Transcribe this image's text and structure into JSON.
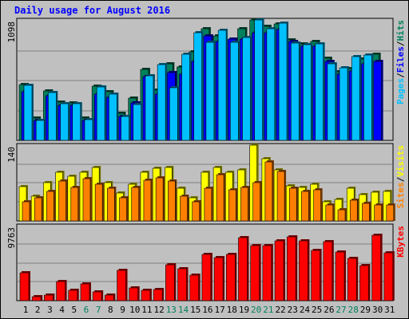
{
  "colors": {
    "background": "#c0c0c0",
    "hits": "#00805c",
    "files": "#0000ff",
    "pages": "#00c0ff",
    "visits": "#ffff00",
    "sites": "#ff8000",
    "kbytes": "#ff0000",
    "title": "#0000ff",
    "weekend_label": "#00805c",
    "weekday_label": "#000000",
    "grid": "#808080"
  },
  "chart_data": {
    "type": "bar",
    "title": "Daily usage for August 2016",
    "categories": [
      "1",
      "2",
      "3",
      "4",
      "5",
      "6",
      "7",
      "8",
      "9",
      "10",
      "11",
      "12",
      "13",
      "14",
      "15",
      "16",
      "17",
      "18",
      "19",
      "20",
      "21",
      "22",
      "23",
      "24",
      "25",
      "26",
      "27",
      "28",
      "29",
      "30",
      "31"
    ],
    "weekend_days": [
      6,
      7,
      13,
      14,
      20,
      21,
      27,
      28
    ],
    "panels": [
      {
        "name": "hits-files-pages",
        "ymax_label": "1098",
        "ymax": 1098,
        "legend": [
          {
            "text": "Pages",
            "color_key": "pages"
          },
          {
            "text": "/",
            "color_key": "weekday_label"
          },
          {
            "text": "Files",
            "color_key": "files"
          },
          {
            "text": "/",
            "color_key": "weekday_label"
          },
          {
            "text": "Hits",
            "color_key": "hits"
          }
        ],
        "series": [
          {
            "name": "Hits",
            "color_key": "hits",
            "values": [
              510,
              205,
              450,
              350,
              345,
              205,
              495,
              440,
              245,
              385,
              650,
              460,
              700,
              670,
              810,
              1015,
              955,
              885,
              1015,
              1098,
              1040,
              1060,
              915,
              880,
              905,
              750,
              625,
              655,
              740,
              785,
              0
            ]
          },
          {
            "name": "Files",
            "color_key": "files",
            "values": [
              440,
              180,
              405,
              320,
              320,
              180,
              425,
              395,
              215,
              345,
              580,
              420,
              620,
              600,
              720,
              955,
              905,
              920,
              920,
              980,
              980,
              1010,
              900,
              860,
              860,
              720,
              600,
              630,
              700,
              720,
              0
            ]
          },
          {
            "name": "Pages",
            "color_key": "pages",
            "values": [
              500,
              185,
              435,
              335,
              335,
              190,
              485,
              420,
              220,
              330,
              590,
              690,
              480,
              785,
              985,
              895,
              1000,
              895,
              935,
              1098,
              1020,
              1070,
              885,
              870,
              880,
              695,
              665,
              765,
              775,
              0,
              0
            ]
          }
        ]
      },
      {
        "name": "visits-sites",
        "ymax_label": "140",
        "ymax": 140,
        "legend": [
          {
            "text": "Sites",
            "color_key": "sites"
          },
          {
            "text": "/",
            "color_key": "weekday_label"
          },
          {
            "text": "Visits",
            "color_key": "visits"
          }
        ],
        "series": [
          {
            "name": "Visits",
            "color_key": "visits",
            "values": [
              64,
              45,
              70,
              90,
              83,
              90,
              98,
              70,
              52,
              68,
              90,
              97,
              98,
              60,
              43,
              90,
              98,
              90,
              95,
              140,
              115,
              95,
              65,
              62,
              68,
              36,
              40,
              60,
              48,
              53,
              54
            ]
          },
          {
            "name": "Sites",
            "color_key": "sites",
            "values": [
              35,
              42,
              55,
              73,
              62,
              78,
              68,
              60,
              42,
              62,
              75,
              80,
              73,
              45,
              36,
              60,
              85,
              57,
              62,
              70,
              109,
              92,
              61,
              54,
              57,
              30,
              20,
              39,
              33,
              30,
              30
            ]
          }
        ]
      },
      {
        "name": "kbytes",
        "ymax_label": "9763",
        "ymax": 9763,
        "legend": [
          {
            "text": "KBytes",
            "color_key": "kbytes"
          }
        ],
        "series": [
          {
            "name": "KBytes",
            "color_key": "kbytes",
            "values": [
              3600,
              500,
              700,
              2500,
              1400,
              2200,
              1100,
              700,
              3900,
              1700,
              1400,
              1500,
              4700,
              4200,
              3300,
              6000,
              5600,
              6000,
              8200,
              7200,
              7200,
              7800,
              8300,
              7800,
              6500,
              7700,
              6300,
              5500,
              4600,
              8500,
              6200
            ]
          }
        ]
      }
    ]
  }
}
